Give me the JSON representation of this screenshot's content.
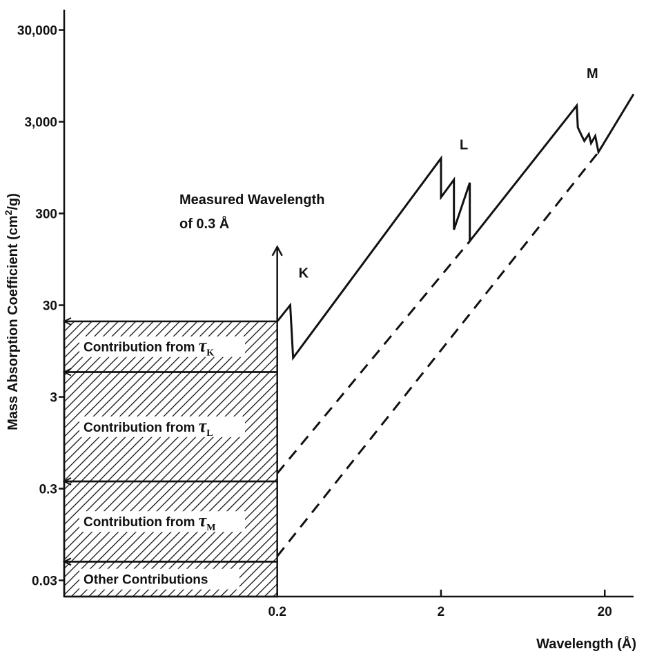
{
  "chart_data": {
    "type": "line",
    "x_scale": "log",
    "y_scale": "log",
    "xlabel": "Wavelength (Å)",
    "ylabel": "Mass Absorption Coefficient (cm²/g)",
    "ylabel_parts": [
      "Mass Absorption Coefficient (cm",
      "2",
      "/g)"
    ],
    "xlim": [
      0.01,
      30
    ],
    "ylim": [
      0.02,
      50000
    ],
    "x_ticks": [
      {
        "value": 0.2,
        "label": "0.2"
      },
      {
        "value": 2,
        "label": "2"
      },
      {
        "value": 20,
        "label": "20"
      }
    ],
    "y_ticks": [
      {
        "value": 0.03,
        "label": "0.03"
      },
      {
        "value": 0.3,
        "label": "0.3"
      },
      {
        "value": 3,
        "label": "3"
      },
      {
        "value": 30,
        "label": "30"
      },
      {
        "value": 300,
        "label": "300"
      },
      {
        "value": 3000,
        "label": "3,000"
      },
      {
        "value": 30000,
        "label": "30,000"
      }
    ],
    "series": [
      {
        "style": "solid",
        "points": [
          [
            0.2,
            20
          ],
          [
            0.24,
            30
          ],
          [
            0.25,
            8
          ],
          [
            2.0,
            1200
          ],
          [
            2.0,
            450
          ],
          [
            2.4,
            700
          ],
          [
            2.4,
            200
          ],
          [
            3.0,
            650
          ],
          [
            3.0,
            150
          ],
          [
            13.5,
            4500
          ],
          [
            13.7,
            2600
          ],
          [
            14.3,
            2200
          ],
          [
            15.0,
            1850
          ],
          [
            16.0,
            2200
          ],
          [
            16.5,
            1750
          ],
          [
            17.5,
            2100
          ],
          [
            18.3,
            1400
          ],
          [
            30,
            6000
          ]
        ]
      },
      {
        "style": "dashed",
        "points": [
          [
            0.2,
            0.44
          ],
          [
            3.0,
            150
          ]
        ]
      },
      {
        "style": "dashed",
        "points": [
          [
            0.2,
            0.055
          ],
          [
            18.3,
            1400
          ]
        ]
      }
    ],
    "bands": [
      {
        "label": "Other Contributions",
        "sub": "",
        "y_bottom": 0.02,
        "y_top": 0.048
      },
      {
        "label": "Contribution from ",
        "sub": "M",
        "y_bottom": 0.048,
        "y_top": 0.36
      },
      {
        "label": "Contribution from ",
        "sub": "L",
        "y_bottom": 0.36,
        "y_top": 5.6
      },
      {
        "label": "Contribution from ",
        "sub": "K",
        "y_bottom": 5.6,
        "y_top": 20
      }
    ],
    "edge_labels": [
      {
        "text": "K",
        "x": 0.27,
        "y": 60
      },
      {
        "text": "L",
        "x": 2.6,
        "y": 1500
      },
      {
        "text": "M",
        "x": 15.5,
        "y": 9000
      }
    ],
    "annotation": {
      "lines": [
        "Measured Wavelength",
        "of 0.3 Å"
      ],
      "arrow_x": 0.2,
      "arrow_from_y": 20,
      "arrow_to_y": 130
    },
    "tau_symbol": "τ"
  }
}
